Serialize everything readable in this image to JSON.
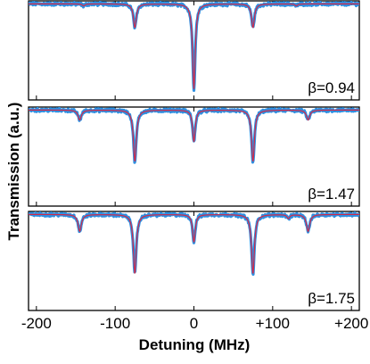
{
  "chart_data": {
    "type": "line",
    "xlabel": "Detuning (MHz)",
    "ylabel": "Transmission (a.u.)",
    "xlim": [
      -210,
      210
    ],
    "ylim": [
      0,
      1
    ],
    "x_ticks": [
      -200,
      -100,
      0,
      100,
      200
    ],
    "x_tick_labels": [
      "-200",
      "-100",
      "0",
      "+100",
      "+200"
    ],
    "series_colors": {
      "data": "#2f8fe0",
      "fit": "#d02a4a"
    },
    "panels": [
      {
        "label": "β=0.94",
        "baseline": 0.97,
        "dips": [
          {
            "x": -75,
            "depth": 0.24,
            "width": 2.2
          },
          {
            "x": 0,
            "depth": 0.86,
            "width": 2.0
          },
          {
            "x": 75,
            "depth": 0.24,
            "width": 2.2
          },
          {
            "x": -140,
            "depth": 0.02,
            "width": 2.0
          },
          {
            "x": 130,
            "depth": 0.02,
            "width": 2.0
          }
        ]
      },
      {
        "label": "β=1.47",
        "baseline": 0.97,
        "dips": [
          {
            "x": -145,
            "depth": 0.1,
            "width": 2.5
          },
          {
            "x": -75,
            "depth": 0.52,
            "width": 2.2
          },
          {
            "x": 0,
            "depth": 0.32,
            "width": 2.0
          },
          {
            "x": 75,
            "depth": 0.52,
            "width": 2.2
          },
          {
            "x": 145,
            "depth": 0.1,
            "width": 2.5
          }
        ]
      },
      {
        "label": "β=1.75",
        "baseline": 0.97,
        "dips": [
          {
            "x": -145,
            "depth": 0.17,
            "width": 2.5
          },
          {
            "x": -75,
            "depth": 0.6,
            "width": 2.2
          },
          {
            "x": 0,
            "depth": 0.28,
            "width": 2.0
          },
          {
            "x": 75,
            "depth": 0.6,
            "width": 2.2
          },
          {
            "x": 145,
            "depth": 0.17,
            "width": 2.5
          },
          {
            "x": 120,
            "depth": 0.04,
            "width": 2.0
          }
        ]
      }
    ]
  }
}
